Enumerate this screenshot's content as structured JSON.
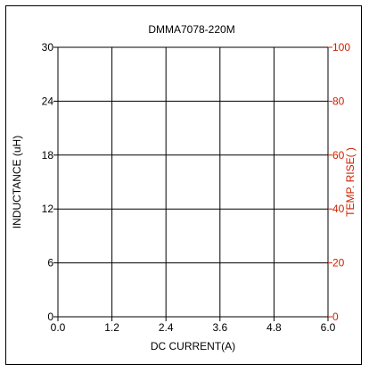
{
  "chart_data": {
    "type": "line",
    "title": "DMMA7078-220M",
    "xlabel": "DC CURRENT(A)",
    "ylabel": "INDUCTANCE (uH)",
    "y2label": "TEMP. RISE(   )",
    "xlim": [
      0,
      6
    ],
    "ylim": [
      0,
      30
    ],
    "y2lim": [
      0,
      100
    ],
    "x_ticks": [
      "0.0",
      "1.2",
      "2.4",
      "3.6",
      "4.8",
      "6.0"
    ],
    "y_ticks": [
      "0",
      "6",
      "12",
      "18",
      "24",
      "30"
    ],
    "y2_ticks": [
      "0",
      "20",
      "40",
      "60",
      "80",
      "100"
    ],
    "grid": true,
    "series": [],
    "colors": {
      "left_axis": "#000000",
      "right_axis": "#cc2200",
      "grid": "#000000"
    }
  }
}
